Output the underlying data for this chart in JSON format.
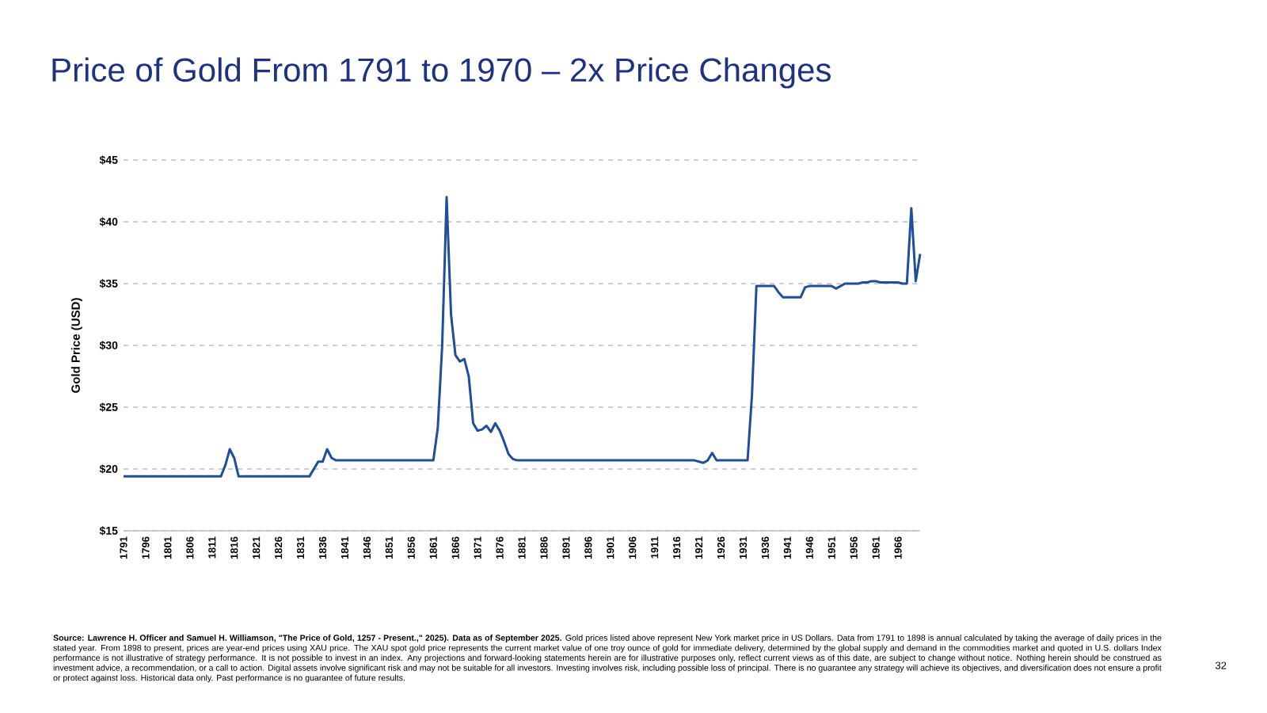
{
  "chart_data": {
    "type": "line",
    "title": "Price of Gold From 1791 to 1970 – 2x Price Changes",
    "ylabel": "Gold Price (USD)",
    "color": "#1f4e9a",
    "grid": "y",
    "x": [
      1791,
      1792,
      1793,
      1794,
      1795,
      1796,
      1797,
      1798,
      1799,
      1800,
      1801,
      1802,
      1803,
      1804,
      1805,
      1806,
      1807,
      1808,
      1809,
      1810,
      1811,
      1812,
      1813,
      1814,
      1815,
      1816,
      1817,
      1818,
      1819,
      1820,
      1821,
      1822,
      1823,
      1824,
      1825,
      1826,
      1827,
      1828,
      1829,
      1830,
      1831,
      1832,
      1833,
      1834,
      1835,
      1836,
      1837,
      1838,
      1839,
      1840,
      1841,
      1842,
      1843,
      1844,
      1845,
      1846,
      1847,
      1848,
      1849,
      1850,
      1851,
      1852,
      1853,
      1854,
      1855,
      1856,
      1857,
      1858,
      1859,
      1860,
      1861,
      1862,
      1863,
      1864,
      1865,
      1866,
      1867,
      1868,
      1869,
      1870,
      1871,
      1872,
      1873,
      1874,
      1875,
      1876,
      1877,
      1878,
      1879,
      1880,
      1881,
      1882,
      1883,
      1884,
      1885,
      1886,
      1887,
      1888,
      1889,
      1890,
      1891,
      1892,
      1893,
      1894,
      1895,
      1896,
      1897,
      1898,
      1899,
      1900,
      1901,
      1902,
      1903,
      1904,
      1905,
      1906,
      1907,
      1908,
      1909,
      1910,
      1911,
      1912,
      1913,
      1914,
      1915,
      1916,
      1917,
      1918,
      1919,
      1920,
      1921,
      1922,
      1923,
      1924,
      1925,
      1926,
      1927,
      1928,
      1929,
      1930,
      1931,
      1932,
      1933,
      1934,
      1935,
      1936,
      1937,
      1938,
      1939,
      1940,
      1941,
      1942,
      1943,
      1944,
      1945,
      1946,
      1947,
      1948,
      1949,
      1950,
      1951,
      1952,
      1953,
      1954,
      1955,
      1956,
      1957,
      1958,
      1959,
      1960,
      1961,
      1962,
      1963,
      1964,
      1965,
      1966,
      1967,
      1968,
      1969,
      1970,
      1971
    ],
    "values": [
      19.4,
      19.4,
      19.4,
      19.4,
      19.4,
      19.4,
      19.4,
      19.4,
      19.4,
      19.4,
      19.4,
      19.4,
      19.4,
      19.4,
      19.4,
      19.4,
      19.4,
      19.4,
      19.4,
      19.4,
      19.4,
      19.4,
      19.4,
      20.3,
      21.6,
      20.9,
      19.4,
      19.4,
      19.4,
      19.4,
      19.4,
      19.4,
      19.4,
      19.4,
      19.4,
      19.4,
      19.4,
      19.4,
      19.4,
      19.4,
      19.4,
      19.4,
      19.4,
      20.0,
      20.6,
      20.6,
      21.6,
      20.9,
      20.7,
      20.7,
      20.7,
      20.7,
      20.7,
      20.7,
      20.7,
      20.7,
      20.7,
      20.7,
      20.7,
      20.7,
      20.7,
      20.7,
      20.7,
      20.7,
      20.7,
      20.7,
      20.7,
      20.7,
      20.7,
      20.7,
      20.7,
      23.3,
      30.0,
      42.0,
      32.5,
      29.2,
      28.7,
      28.9,
      27.5,
      23.7,
      23.1,
      23.2,
      23.5,
      23.0,
      23.7,
      23.1,
      22.2,
      21.2,
      20.8,
      20.7,
      20.7,
      20.7,
      20.7,
      20.7,
      20.7,
      20.7,
      20.7,
      20.7,
      20.7,
      20.7,
      20.7,
      20.7,
      20.7,
      20.7,
      20.7,
      20.7,
      20.7,
      20.7,
      20.7,
      20.7,
      20.7,
      20.7,
      20.7,
      20.7,
      20.7,
      20.7,
      20.7,
      20.7,
      20.7,
      20.7,
      20.7,
      20.7,
      20.7,
      20.7,
      20.7,
      20.7,
      20.7,
      20.7,
      20.7,
      20.7,
      20.6,
      20.5,
      20.7,
      21.3,
      20.7,
      20.7,
      20.7,
      20.7,
      20.7,
      20.7,
      20.7,
      20.7,
      26.0,
      34.8,
      34.8,
      34.8,
      34.8,
      34.8,
      34.3,
      33.9,
      33.9,
      33.9,
      33.9,
      33.9,
      34.7,
      34.8,
      34.8,
      34.8,
      34.8,
      34.8,
      34.8,
      34.6,
      34.8,
      35.0,
      35.0,
      35.0,
      35.0,
      35.1,
      35.1,
      35.2,
      35.2,
      35.1,
      35.1,
      35.1,
      35.1,
      35.1,
      35.0,
      35.0,
      41.1,
      35.2,
      37.4
    ],
    "xlim": [
      1791,
      1971
    ],
    "xticks": [
      1791,
      1796,
      1801,
      1806,
      1811,
      1816,
      1821,
      1826,
      1831,
      1836,
      1841,
      1846,
      1851,
      1856,
      1861,
      1866,
      1871,
      1876,
      1881,
      1886,
      1891,
      1896,
      1901,
      1906,
      1911,
      1916,
      1921,
      1926,
      1931,
      1936,
      1941,
      1946,
      1951,
      1956,
      1961,
      1966
    ],
    "ylim": [
      15,
      45
    ],
    "yticks": [
      {
        "value": 15,
        "label": "$15"
      },
      {
        "value": 20,
        "label": "$20"
      },
      {
        "value": 25,
        "label": "$25"
      },
      {
        "value": 30,
        "label": "$30"
      },
      {
        "value": 35,
        "label": "$35"
      },
      {
        "value": 40,
        "label": "$40"
      },
      {
        "value": 45,
        "label": "$45"
      }
    ],
    "annotations": [
      "**Source: Lawrence H. Officer and Samuel H. Williamson, \"The Price of Gold, 1257 - Present.,\" 2025). Data as of September 2025.** Gold prices listed above represent New York market price in US Dollars.  Data from 1791 to 1898 is annual calculated by taking the average of daily prices in the stated year. From 1898 to present, prices are year-end prices using XAU price.   The XAU spot gold price represents the current market value of one troy ounce of gold for immediate delivery, determined by the global supply and demand in the commodities market and quoted in U.S. dollars    Index performance is not illustrative of strategy performance. It is not possible to invest in an index. Any projections and forward-looking statements herein are for illustrative purposes only, reflect current views as of this date, are subject to change without notice. Nothing herein should be construed as investment advice, a recommendation, or a call to action. Digital assets involve significant risk and may not be suitable for all investors. Investing involves risk, including possible loss of principal. There is no guarantee any strategy will achieve its objectives, and diversification does not ensure a profit or protect against loss. Historical data only. Past performance is no guarantee of future results.",
      "32"
    ]
  }
}
